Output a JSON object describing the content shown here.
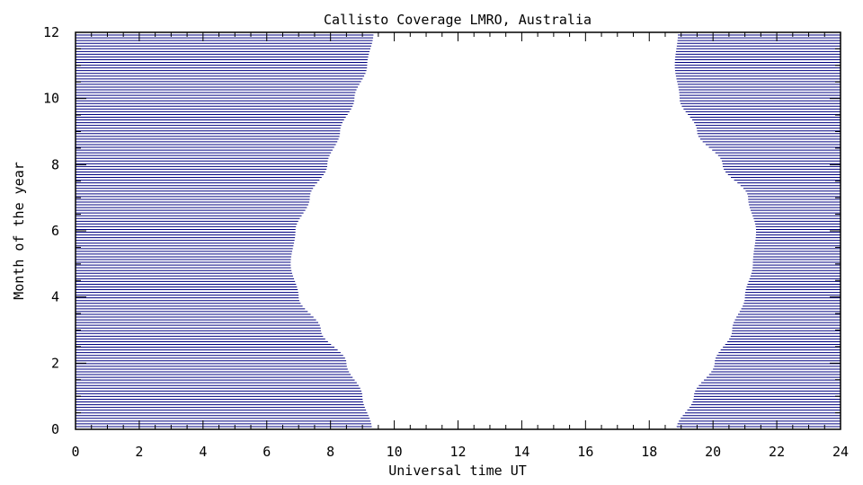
{
  "chart_data": {
    "type": "area",
    "title": "Callisto Coverage LMRO, Australia",
    "xlabel": "Universal time UT",
    "ylabel": "Month of the year",
    "xlim": [
      0,
      24
    ],
    "ylim": [
      0,
      12
    ],
    "x_ticks": [
      "0",
      "2",
      "4",
      "6",
      "8",
      "10",
      "12",
      "14",
      "16",
      "18",
      "20",
      "22",
      "24"
    ],
    "y_ticks": [
      "0",
      "2",
      "4",
      "6",
      "8",
      "10",
      "12"
    ],
    "hatch_color": "#000080",
    "grid": false,
    "morning_boundary": {
      "month": [
        0,
        1,
        2,
        3,
        4,
        5,
        6,
        7,
        8,
        9,
        10,
        11,
        12
      ],
      "ut": [
        9.3,
        9.0,
        8.5,
        7.7,
        7.0,
        6.75,
        6.9,
        7.35,
        7.9,
        8.3,
        8.75,
        9.15,
        9.35
      ]
    },
    "evening_boundary": {
      "month": [
        0,
        1,
        2,
        3,
        4,
        5,
        6,
        7,
        8,
        9,
        10,
        11,
        12
      ],
      "ut": [
        18.85,
        19.4,
        20.05,
        20.6,
        21.0,
        21.25,
        21.35,
        21.1,
        20.3,
        19.5,
        18.95,
        18.8,
        18.9
      ]
    }
  }
}
